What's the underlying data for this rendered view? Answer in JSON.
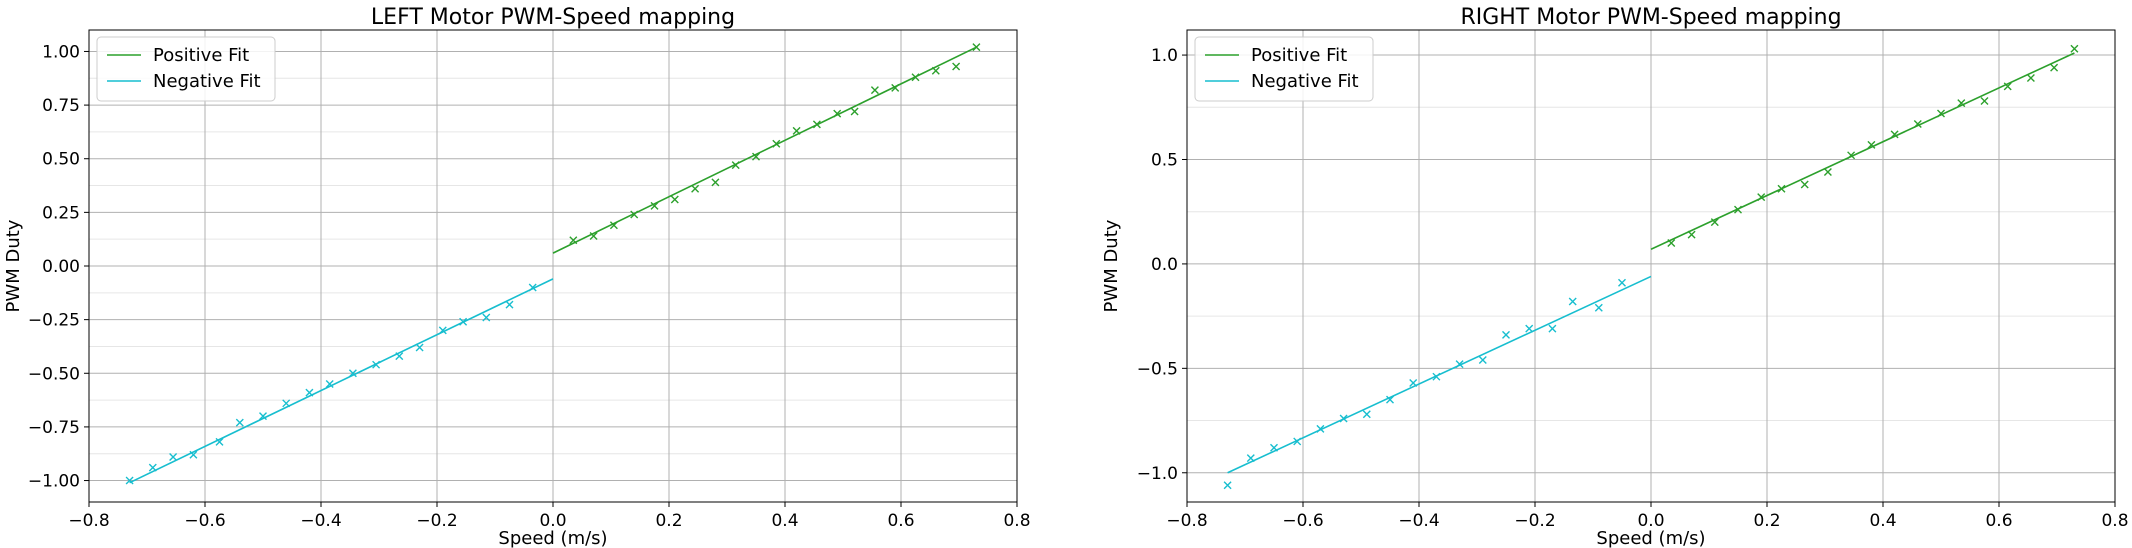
{
  "chart_data": [
    {
      "type": "scatter",
      "title": "LEFT Motor PWM-Speed mapping",
      "xlabel": "Speed (m/s)",
      "ylabel": "PWM Duty",
      "xlim": [
        -0.8,
        0.8
      ],
      "ylim": [
        -1.1,
        1.1
      ],
      "xticks": [
        -0.8,
        -0.6,
        -0.4,
        -0.2,
        0.0,
        0.2,
        0.4,
        0.6,
        0.8
      ],
      "xtick_labels": [
        "−0.8",
        "−0.6",
        "−0.4",
        "−0.2",
        "0.0",
        "0.2",
        "0.4",
        "0.6",
        "0.8"
      ],
      "yticks": [
        -1.0,
        -0.75,
        -0.5,
        -0.25,
        0.0,
        0.25,
        0.5,
        0.75,
        1.0
      ],
      "ytick_labels": [
        "−1.00",
        "−0.75",
        "−0.50",
        "−0.25",
        "0.00",
        "0.25",
        "0.50",
        "0.75",
        "1.00"
      ],
      "minor_yticks": [
        -0.875,
        -0.625,
        -0.375,
        -0.125,
        0.125,
        0.375,
        0.625,
        0.875
      ],
      "grid": true,
      "legend_position": "top-left",
      "series": [
        {
          "name": "Positive Fit",
          "kind": "line",
          "color": "#2ca02c",
          "x": [
            0.0,
            0.73
          ],
          "y": [
            0.06,
            1.02
          ]
        },
        {
          "name": "Negative Fit",
          "kind": "line",
          "color": "#17becf",
          "x": [
            -0.73,
            0.0
          ],
          "y": [
            -1.01,
            -0.06
          ]
        },
        {
          "kind": "scatter",
          "color": "#2ca02c",
          "x": [
            0.035,
            0.07,
            0.105,
            0.14,
            0.175,
            0.21,
            0.245,
            0.28,
            0.315,
            0.35,
            0.385,
            0.42,
            0.455,
            0.49,
            0.52,
            0.555,
            0.59,
            0.625,
            0.66,
            0.695,
            0.73
          ],
          "y": [
            0.12,
            0.14,
            0.19,
            0.24,
            0.28,
            0.31,
            0.36,
            0.39,
            0.47,
            0.51,
            0.57,
            0.63,
            0.66,
            0.71,
            0.72,
            0.82,
            0.83,
            0.88,
            0.91,
            0.93,
            1.02
          ]
        },
        {
          "kind": "scatter",
          "color": "#17becf",
          "x": [
            -0.73,
            -0.69,
            -0.655,
            -0.62,
            -0.575,
            -0.54,
            -0.5,
            -0.46,
            -0.42,
            -0.385,
            -0.345,
            -0.305,
            -0.265,
            -0.23,
            -0.19,
            -0.155,
            -0.115,
            -0.075,
            -0.035
          ],
          "y": [
            -1.0,
            -0.94,
            -0.89,
            -0.88,
            -0.82,
            -0.73,
            -0.7,
            -0.64,
            -0.59,
            -0.55,
            -0.5,
            -0.46,
            -0.42,
            -0.38,
            -0.3,
            -0.26,
            -0.24,
            -0.18,
            -0.1
          ]
        }
      ]
    },
    {
      "type": "scatter",
      "title": "RIGHT Motor PWM-Speed mapping",
      "xlabel": "Speed (m/s)",
      "ylabel": "PWM Duty",
      "xlim": [
        -0.8,
        0.8
      ],
      "ylim": [
        -1.14,
        1.12
      ],
      "xticks": [
        -0.8,
        -0.6,
        -0.4,
        -0.2,
        0.0,
        0.2,
        0.4,
        0.6,
        0.8
      ],
      "xtick_labels": [
        "−0.8",
        "−0.6",
        "−0.4",
        "−0.2",
        "0.0",
        "0.2",
        "0.4",
        "0.6",
        "0.8"
      ],
      "yticks": [
        -1.0,
        -0.5,
        0.0,
        0.5,
        1.0
      ],
      "ytick_labels": [
        "−1.0",
        "−0.5",
        "0.0",
        "0.5",
        "1.0"
      ],
      "minor_yticks": [
        -0.75,
        -0.25,
        0.25,
        0.75
      ],
      "grid": true,
      "legend_position": "top-left",
      "series": [
        {
          "name": "Positive Fit",
          "kind": "line",
          "color": "#2ca02c",
          "x": [
            0.0,
            0.73
          ],
          "y": [
            0.07,
            1.01
          ]
        },
        {
          "name": "Negative Fit",
          "kind": "line",
          "color": "#17becf",
          "x": [
            -0.73,
            0.0
          ],
          "y": [
            -1.0,
            -0.06
          ]
        },
        {
          "kind": "scatter",
          "color": "#2ca02c",
          "x": [
            0.035,
            0.07,
            0.11,
            0.15,
            0.19,
            0.225,
            0.265,
            0.305,
            0.345,
            0.38,
            0.42,
            0.46,
            0.5,
            0.535,
            0.575,
            0.615,
            0.655,
            0.695,
            0.73
          ],
          "y": [
            0.1,
            0.14,
            0.2,
            0.26,
            0.32,
            0.36,
            0.38,
            0.44,
            0.52,
            0.57,
            0.62,
            0.67,
            0.72,
            0.77,
            0.78,
            0.85,
            0.89,
            0.94,
            1.03
          ]
        },
        {
          "kind": "scatter",
          "color": "#17becf",
          "x": [
            -0.73,
            -0.69,
            -0.65,
            -0.61,
            -0.57,
            -0.53,
            -0.49,
            -0.45,
            -0.41,
            -0.37,
            -0.33,
            -0.29,
            -0.25,
            -0.21,
            -0.17,
            -0.135,
            -0.09,
            -0.05
          ],
          "y": [
            -1.06,
            -0.93,
            -0.88,
            -0.85,
            -0.79,
            -0.74,
            -0.72,
            -0.65,
            -0.57,
            -0.54,
            -0.48,
            -0.46,
            -0.34,
            -0.31,
            -0.31,
            -0.18,
            -0.21,
            -0.09
          ]
        }
      ]
    }
  ]
}
